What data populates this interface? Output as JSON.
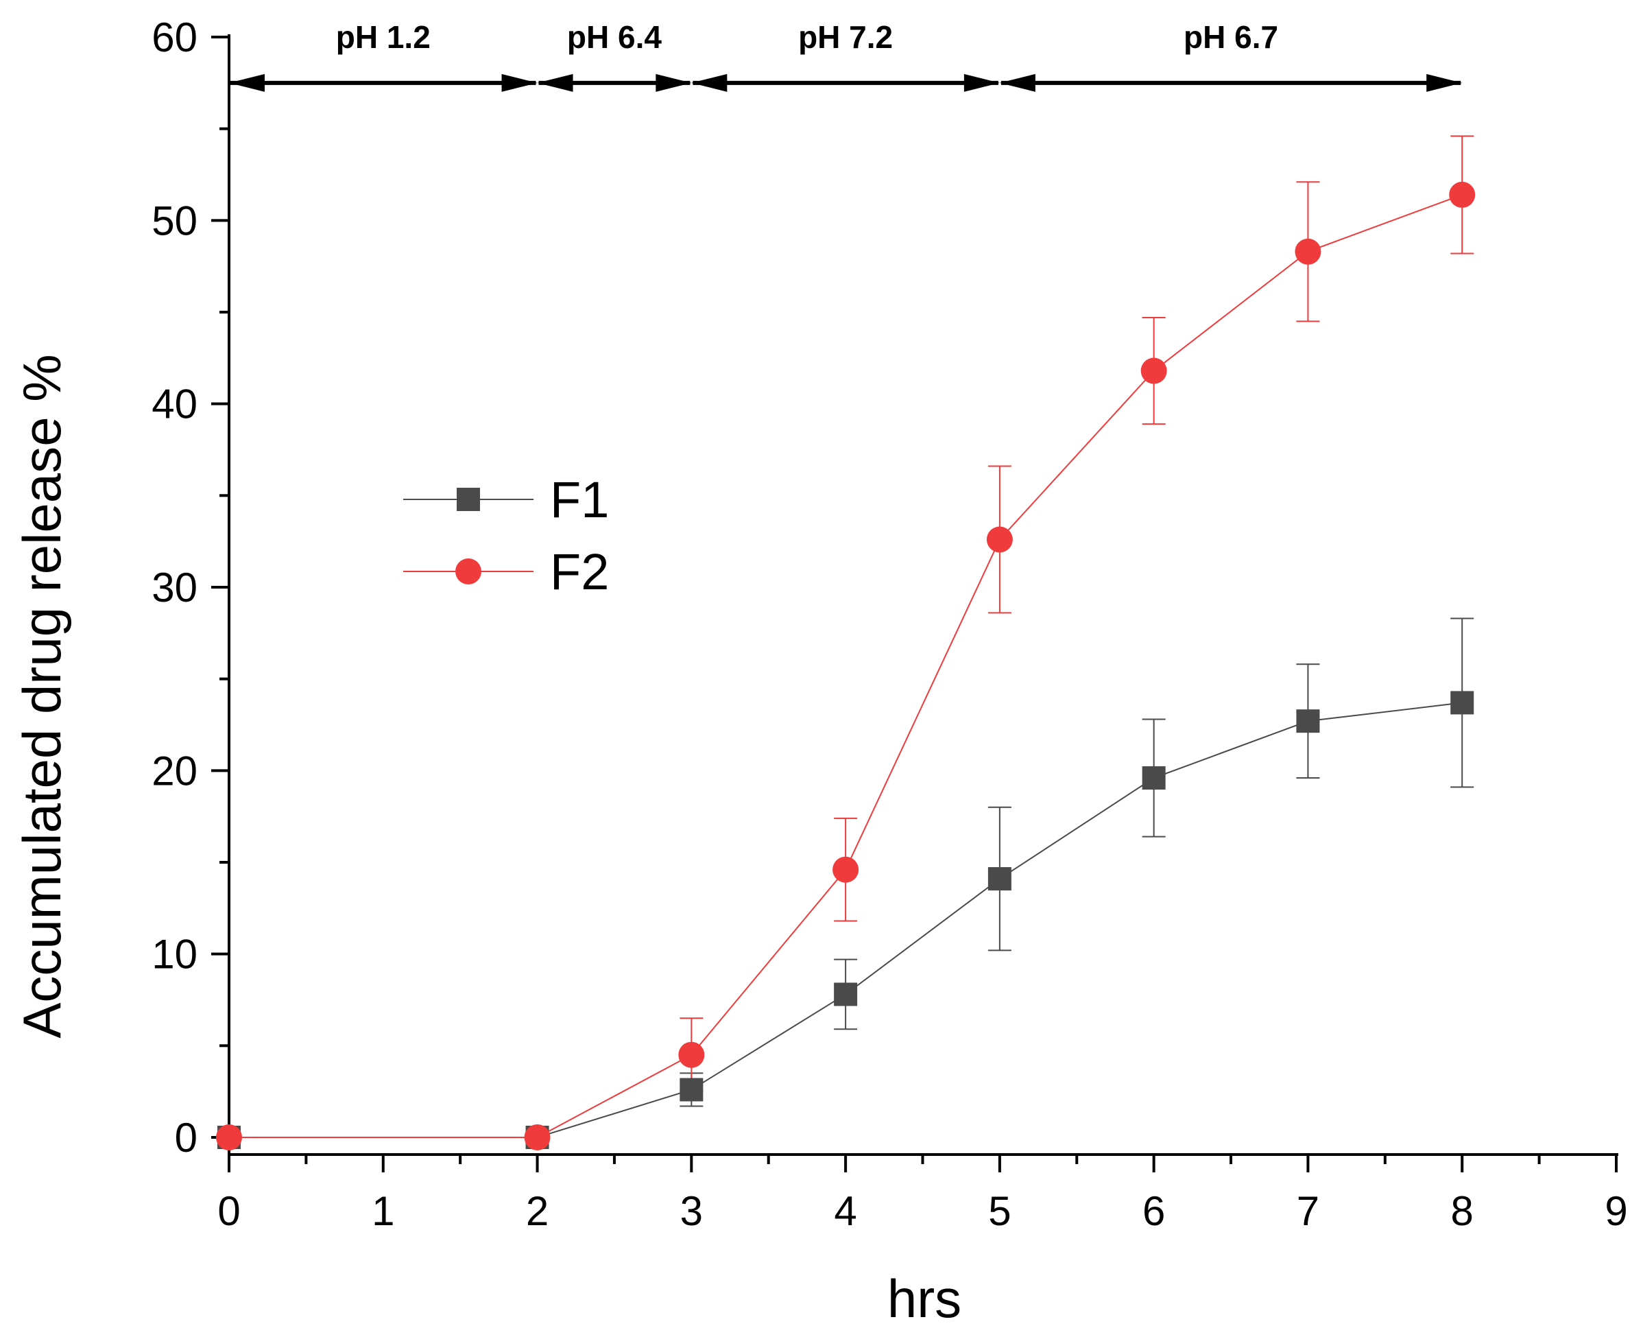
{
  "chart_data": {
    "type": "line",
    "title": "",
    "xlabel": "hrs",
    "ylabel": "Accumulated drug release %",
    "xlim": [
      0,
      9
    ],
    "ylim": [
      0,
      60
    ],
    "xticks": [
      0,
      1,
      2,
      3,
      4,
      5,
      6,
      7,
      8,
      9
    ],
    "yticks": [
      0,
      10,
      20,
      30,
      40,
      50,
      60
    ],
    "x_tick_labels": [
      "0",
      "1",
      "2",
      "3",
      "4",
      "5",
      "6",
      "7",
      "8",
      "9"
    ],
    "y_tick_labels": [
      "0",
      "10",
      "20",
      "30",
      "40",
      "50",
      "60"
    ],
    "grid": false,
    "legend_position": "center-left",
    "series": [
      {
        "name": "F1",
        "color": "#4a4a4a",
        "marker": "square",
        "x": [
          0,
          2,
          3,
          4,
          5,
          6,
          7,
          8
        ],
        "values": [
          0,
          0,
          2.6,
          7.8,
          14.1,
          19.6,
          22.7,
          23.7
        ],
        "error": [
          0,
          0,
          0.9,
          1.9,
          3.9,
          3.2,
          3.1,
          4.6
        ]
      },
      {
        "name": "F2",
        "color": "#ef3b3b",
        "marker": "circle",
        "x": [
          0,
          2,
          3,
          4,
          5,
          6,
          7,
          8
        ],
        "values": [
          0,
          0,
          4.5,
          14.6,
          32.6,
          41.8,
          48.3,
          51.4
        ],
        "error": [
          0,
          0,
          2.0,
          2.8,
          4.0,
          2.9,
          3.8,
          3.2
        ]
      }
    ],
    "ph_regions": [
      {
        "label": "pH 1.2",
        "x_start": 0,
        "x_end": 2
      },
      {
        "label": "pH 6.4",
        "x_start": 2,
        "x_end": 3
      },
      {
        "label": "pH 7.2",
        "x_start": 3,
        "x_end": 5
      },
      {
        "label": "pH 6.7",
        "x_start": 5,
        "x_end": 8
      }
    ],
    "ph_arrow_y": 57.5
  }
}
